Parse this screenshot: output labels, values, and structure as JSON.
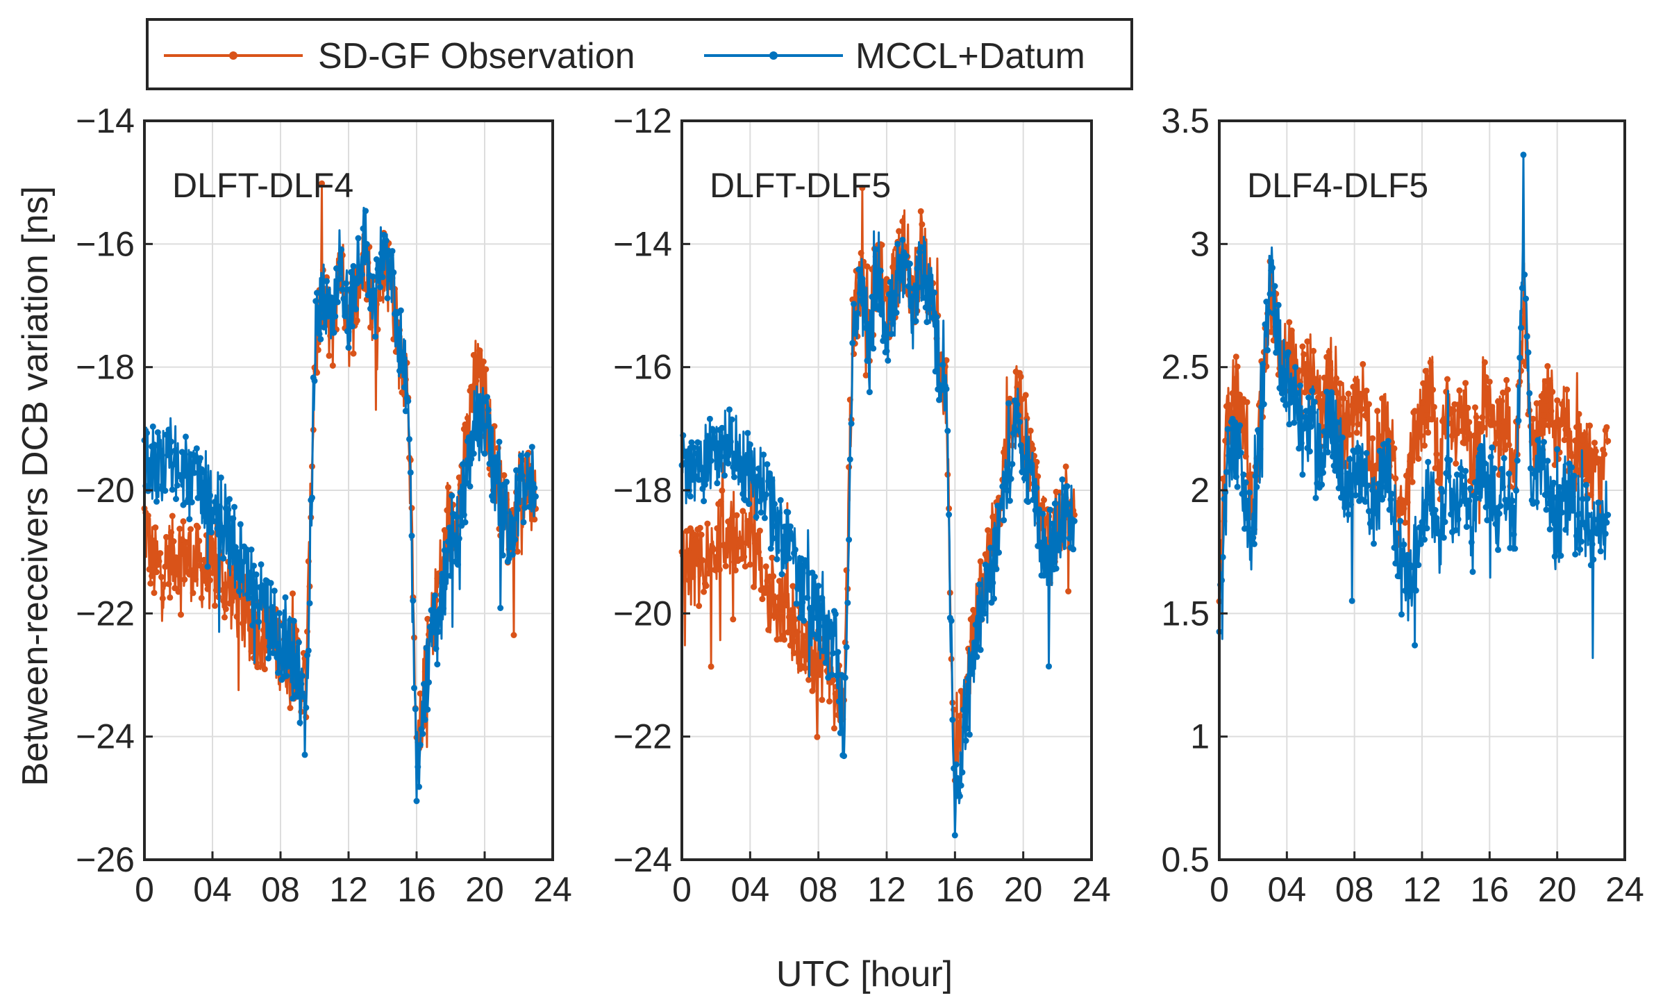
{
  "chart_data": [
    {
      "type": "line",
      "title": "DLFT-DLF4",
      "xlabel": "UTC [hour]",
      "ylabel": "Between-receivers DCB variation [ns]",
      "xlim": [
        0,
        24
      ],
      "ylim": [
        -26,
        -14
      ],
      "xticks": [
        0,
        4,
        8,
        12,
        16,
        20,
        24
      ],
      "xtick_labels": [
        "0",
        "04",
        "08",
        "12",
        "16",
        "20",
        "24"
      ],
      "yticks": [
        -26,
        -24,
        -22,
        -20,
        -18,
        -16,
        -14
      ],
      "ytick_labels": [
        "−26",
        "−24",
        "−22",
        "−20",
        "−18",
        "−16",
        "−14"
      ],
      "grid": true,
      "x": [
        0,
        0.5,
        1,
        1.5,
        2,
        2.5,
        3,
        3.5,
        4,
        4.5,
        5,
        5.5,
        6,
        6.5,
        7,
        7.5,
        8,
        8.5,
        9,
        9.5,
        10,
        10.5,
        11,
        11.5,
        12,
        12.5,
        13,
        13.5,
        14,
        14.5,
        15,
        15.5,
        16,
        16.5,
        17,
        17.5,
        18,
        18.5,
        19,
        19.5,
        20,
        20.5,
        21,
        21.5,
        22,
        22.5,
        23
      ],
      "series": [
        {
          "name": "SD-GF Observation",
          "color": "#D95319",
          "values": [
            -20.5,
            -21.2,
            -21.3,
            -21.1,
            -21.0,
            -21.1,
            -21.2,
            -21.3,
            -21.3,
            -21.4,
            -21.6,
            -21.8,
            -22.1,
            -22.2,
            -22.3,
            -22.5,
            -22.6,
            -22.7,
            -22.8,
            -23.2,
            -17.9,
            -16.8,
            -17.6,
            -16.2,
            -17.4,
            -16.8,
            -16.1,
            -17.2,
            -16.3,
            -16.6,
            -17.8,
            -18.2,
            -24.6,
            -23.0,
            -22.0,
            -21.2,
            -20.6,
            -20.1,
            -19.2,
            -18.1,
            -18.5,
            -19.4,
            -20.2,
            -20.7,
            -20.3,
            -19.9,
            -20.3
          ]
        },
        {
          "name": "MCCL+Datum",
          "color": "#0072BD",
          "values": [
            -19.3,
            -19.5,
            -19.6,
            -19.4,
            -19.6,
            -19.8,
            -19.9,
            -20.0,
            -20.1,
            -20.4,
            -20.7,
            -21.1,
            -21.4,
            -21.7,
            -21.9,
            -22.2,
            -22.4,
            -22.6,
            -22.9,
            -23.9,
            -17.7,
            -16.6,
            -17.4,
            -16.1,
            -17.3,
            -16.6,
            -15.9,
            -17.1,
            -16.1,
            -16.5,
            -17.6,
            -18.5,
            -24.6,
            -23.2,
            -22.3,
            -21.6,
            -21.0,
            -20.5,
            -19.8,
            -18.7,
            -18.9,
            -19.6,
            -20.4,
            -20.6,
            -20.1,
            -19.7,
            -20.1
          ]
        }
      ]
    },
    {
      "type": "line",
      "title": "DLFT-DLF5",
      "xlabel": "UTC [hour]",
      "ylabel": "",
      "xlim": [
        0,
        24
      ],
      "ylim": [
        -24,
        -12
      ],
      "xticks": [
        0,
        4,
        8,
        12,
        16,
        20,
        24
      ],
      "xtick_labels": [
        "0",
        "04",
        "08",
        "12",
        "16",
        "20",
        "24"
      ],
      "yticks": [
        -24,
        -22,
        -20,
        -18,
        -16,
        -14,
        -12
      ],
      "ytick_labels": [
        "−24",
        "−22",
        "−20",
        "−18",
        "−16",
        "−14",
        "−12"
      ],
      "grid": true,
      "x": [
        0,
        0.5,
        1,
        1.5,
        2,
        2.5,
        3,
        3.5,
        4,
        4.5,
        5,
        5.5,
        6,
        6.5,
        7,
        7.5,
        8,
        8.5,
        9,
        9.5,
        10,
        10.5,
        11,
        11.5,
        12,
        12.5,
        13,
        13.5,
        14,
        14.5,
        15,
        15.5,
        16,
        16.5,
        17,
        17.5,
        18,
        18.5,
        19,
        19.5,
        20,
        20.5,
        21,
        21.5,
        22,
        22.5,
        23
      ],
      "series": [
        {
          "name": "SD-GF Observation",
          "color": "#D95319",
          "values": [
            -19.0,
            -19.2,
            -19.3,
            -19.1,
            -18.8,
            -18.6,
            -18.6,
            -18.8,
            -19.0,
            -19.2,
            -19.6,
            -19.8,
            -20.0,
            -20.2,
            -20.4,
            -20.6,
            -20.8,
            -20.9,
            -21.0,
            -21.6,
            -15.4,
            -14.6,
            -15.4,
            -14.2,
            -15.2,
            -14.6,
            -14.0,
            -15.0,
            -14.1,
            -14.6,
            -15.6,
            -16.4,
            -23.0,
            -21.4,
            -20.5,
            -19.6,
            -19.0,
            -18.5,
            -17.6,
            -16.4,
            -16.8,
            -17.7,
            -18.5,
            -18.9,
            -18.6,
            -18.2,
            -18.4
          ]
        },
        {
          "name": "MCCL+Datum",
          "color": "#0072BD",
          "values": [
            -17.5,
            -17.7,
            -17.8,
            -17.5,
            -17.3,
            -17.2,
            -17.3,
            -17.5,
            -17.7,
            -17.9,
            -18.2,
            -18.5,
            -18.8,
            -19.2,
            -19.5,
            -19.8,
            -20.1,
            -20.4,
            -20.6,
            -22.0,
            -15.6,
            -14.8,
            -15.6,
            -14.4,
            -15.4,
            -14.8,
            -14.2,
            -15.2,
            -14.3,
            -14.8,
            -15.8,
            -16.7,
            -23.3,
            -21.8,
            -20.8,
            -20.0,
            -19.4,
            -18.9,
            -18.0,
            -16.9,
            -17.2,
            -18.0,
            -18.7,
            -19.0,
            -18.7,
            -18.3,
            -18.5
          ]
        }
      ]
    },
    {
      "type": "line",
      "title": "DLF4-DLF5",
      "xlabel": "UTC [hour]",
      "ylabel": "",
      "xlim": [
        0,
        24
      ],
      "ylim": [
        0.5,
        3.5
      ],
      "xticks": [
        0,
        4,
        8,
        12,
        16,
        20,
        24
      ],
      "xtick_labels": [
        "0",
        "04",
        "08",
        "12",
        "16",
        "20",
        "24"
      ],
      "yticks": [
        0.5,
        1,
        1.5,
        2,
        2.5,
        3,
        3.5
      ],
      "ytick_labels": [
        "0.5",
        "1",
        "1.5",
        "2",
        "2.5",
        "3",
        "3.5"
      ],
      "grid": true,
      "x": [
        0,
        0.5,
        1,
        1.5,
        2,
        2.5,
        3,
        3.5,
        4,
        4.5,
        5,
        5.5,
        6,
        6.5,
        7,
        7.5,
        8,
        8.5,
        9,
        9.5,
        10,
        10.5,
        11,
        11.5,
        12,
        12.5,
        13,
        13.5,
        14,
        14.5,
        15,
        15.5,
        16,
        16.5,
        17,
        17.5,
        18,
        18.5,
        19,
        19.5,
        20,
        20.5,
        21,
        21.5,
        22,
        22.5,
        23
      ],
      "series": [
        {
          "name": "SD-GF Observation",
          "color": "#D95319",
          "values": [
            1.6,
            2.3,
            2.4,
            2.2,
            1.9,
            2.4,
            2.8,
            2.6,
            2.5,
            2.6,
            2.4,
            2.5,
            2.3,
            2.5,
            2.4,
            2.2,
            2.3,
            2.4,
            2.1,
            2.2,
            2.3,
            2.0,
            1.9,
            2.2,
            2.3,
            2.4,
            2.1,
            2.3,
            2.2,
            2.3,
            2.1,
            2.4,
            2.3,
            2.2,
            2.3,
            2.0,
            2.8,
            2.2,
            2.3,
            2.4,
            2.2,
            2.3,
            2.1,
            2.2,
            2.1,
            2.0,
            2.2
          ]
        },
        {
          "name": "MCCL+Datum",
          "color": "#0072BD",
          "values": [
            1.5,
            2.1,
            2.2,
            2.0,
            1.8,
            2.3,
            2.9,
            2.6,
            2.4,
            2.4,
            2.2,
            2.3,
            2.1,
            2.3,
            2.2,
            2.0,
            2.0,
            2.1,
            1.9,
            2.0,
            2.1,
            1.8,
            1.6,
            1.7,
            1.9,
            2.0,
            1.8,
            2.0,
            1.9,
            2.0,
            1.8,
            2.1,
            2.0,
            1.9,
            2.0,
            1.8,
            3.0,
            2.0,
            2.1,
            2.0,
            1.8,
            2.0,
            1.9,
            1.9,
            1.8,
            1.8,
            1.9
          ]
        }
      ]
    }
  ],
  "legend": {
    "placement": "top-left",
    "entries": [
      {
        "label": "SD-GF Observation",
        "color": "#D95319"
      },
      {
        "label": "MCCL+Datum",
        "color": "#0072BD"
      }
    ]
  },
  "shared_xlabel": "UTC [hour]",
  "shared_ylabel": "Between-receivers DCB variation [ns]"
}
